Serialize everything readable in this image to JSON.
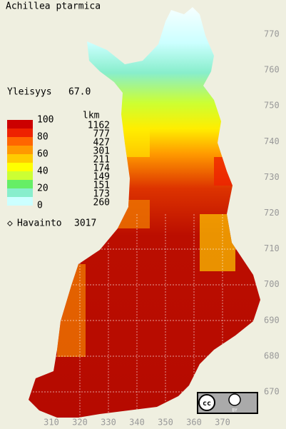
{
  "title": "Achillea ptarmica",
  "frequency": {
    "label": "Yleisyys",
    "value": "67.0"
  },
  "legend": {
    "scale": [
      100,
      80,
      60,
      40,
      20,
      0
    ],
    "count_header": "lkm",
    "counts": [
      1162,
      777,
      427,
      301,
      211,
      174,
      149,
      151,
      173,
      260
    ]
  },
  "observations": {
    "label": "Havainto",
    "value": 3017
  },
  "y_axis": [
    770,
    760,
    750,
    740,
    730,
    720,
    710,
    700,
    690,
    680,
    670
  ],
  "x_axis": [
    310,
    320,
    330,
    340,
    350,
    360,
    370
  ],
  "license": {
    "cc": "cc",
    "by": "BY"
  }
}
